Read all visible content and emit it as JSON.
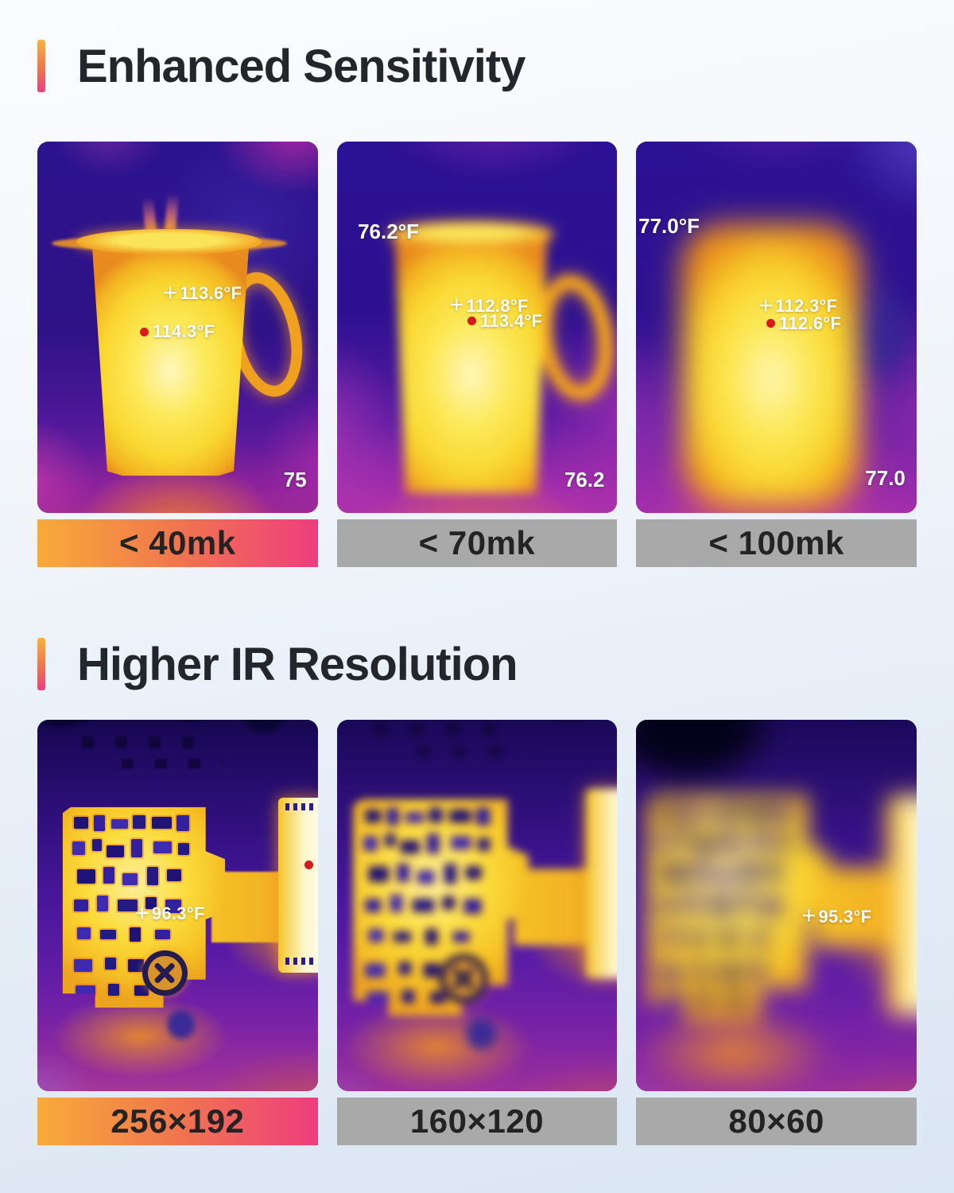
{
  "sections": [
    {
      "heading": "Enhanced Sensitivity",
      "cards": [
        {
          "label": "< 40mk",
          "readings": {
            "spot_max": "113.6°F",
            "spot_center": "114.3°F",
            "scale_min": "75"
          }
        },
        {
          "label": "< 70mk",
          "readings": {
            "ambient": "76.2°F",
            "spot_max": "112.8°F",
            "spot_center": "113.4°F",
            "scale_min": "76.2"
          }
        },
        {
          "label": "< 100mk",
          "readings": {
            "ambient": "77.0°F",
            "spot_max": "112.3°F",
            "spot_center": "112.6°F",
            "scale_min": "77.0"
          }
        }
      ]
    },
    {
      "heading": "Higher IR Resolution",
      "cards": [
        {
          "label": "256×192",
          "readings": {
            "spot": "96.3°F"
          }
        },
        {
          "label": "160×120",
          "readings": {}
        },
        {
          "label": "80×60",
          "readings": {
            "spot": "95.3°F"
          }
        }
      ]
    }
  ],
  "icons": {
    "crosshair": "+"
  },
  "colors": {
    "accent_gradient_start": "#f9b13c",
    "accent_gradient_end": "#ee3d7f",
    "plain_label_bg": "#a9a9a9",
    "heading_text": "#23262b",
    "reading_text": "#ffffff",
    "hot_spot_dot": "#d81a1a"
  }
}
